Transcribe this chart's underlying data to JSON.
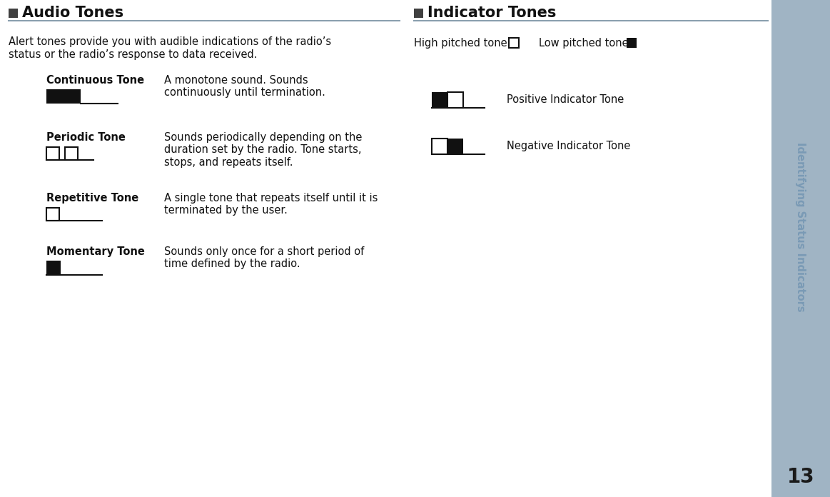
{
  "bg_color": "#ffffff",
  "sidebar_color": "#a0b4c4",
  "sidebar_text": "Identifying Status Indicators",
  "sidebar_text_color": "#7a9ab5",
  "page_number": "13",
  "page_number_color": "#1a1a1a",
  "left_section_title": "Audio Tones",
  "right_section_title": "Indicator Tones",
  "title_square_color": "#404040",
  "title_underline_color": "#8a9fae",
  "intro_text_line1": "Alert tones provide you with audible indications of the radio’s",
  "intro_text_line2": "status or the radio’s response to data received.",
  "tones": [
    {
      "name": "Continuous Tone",
      "description": "A monotone sound. Sounds\ncontinuously until termination.",
      "icon_type": "continuous"
    },
    {
      "name": "Periodic Tone",
      "description": "Sounds periodically depending on the\nduration set by the radio. Tone starts,\nstops, and repeats itself.",
      "icon_type": "periodic"
    },
    {
      "name": "Repetitive Tone",
      "description": "A single tone that repeats itself until it is\nterminated by the user.",
      "icon_type": "repetitive"
    },
    {
      "name": "Momentary Tone",
      "description": "Sounds only once for a short period of\ntime defined by the radio.",
      "icon_type": "momentary"
    }
  ],
  "indicator_tones": [
    {
      "label": "Positive Indicator Tone",
      "black_first": true
    },
    {
      "label": "Negative Indicator Tone",
      "black_first": false
    }
  ]
}
